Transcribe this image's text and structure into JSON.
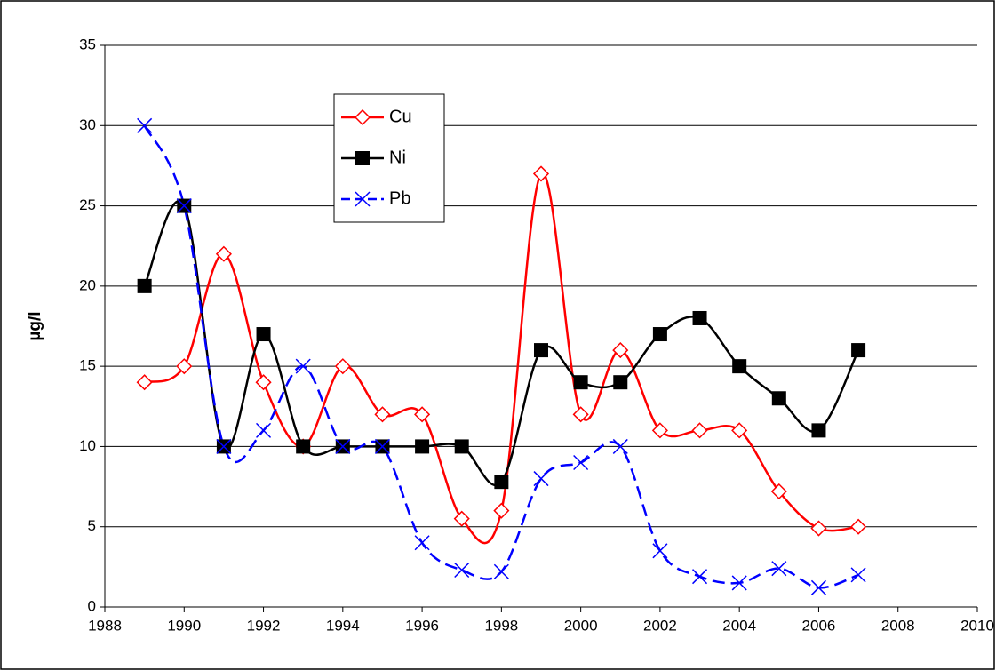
{
  "chart_data": {
    "type": "line",
    "y_label": "µg/l",
    "x": [
      1989,
      1990,
      1991,
      1992,
      1993,
      1994,
      1995,
      1996,
      1997,
      1998,
      1999,
      2000,
      2001,
      2002,
      2003,
      2004,
      2005,
      2006,
      2007
    ],
    "series": [
      {
        "name": "Cu",
        "color": "#ff0000",
        "marker": "diamond",
        "dashed": false,
        "values": [
          14,
          15,
          22,
          14,
          10,
          15,
          12,
          12,
          5.5,
          6,
          27,
          12,
          16,
          11,
          11,
          11,
          7.2,
          4.9,
          5
        ]
      },
      {
        "name": "Ni",
        "color": "#000000",
        "marker": "square",
        "dashed": false,
        "values": [
          20,
          25,
          10,
          17,
          10,
          10,
          10,
          10,
          10,
          7.8,
          16,
          14,
          14,
          17,
          18,
          15,
          13,
          11,
          16
        ]
      },
      {
        "name": "Pb",
        "color": "#0000ff",
        "marker": "x",
        "dashed": true,
        "values": [
          30,
          25,
          10,
          11,
          15,
          10,
          10,
          4,
          2.3,
          2.2,
          8,
          9,
          10,
          3.5,
          1.9,
          1.5,
          2.4,
          1.2,
          2
        ]
      }
    ],
    "xlim": [
      1988,
      2010
    ],
    "xticks": [
      1988,
      1990,
      1992,
      1994,
      1996,
      1998,
      2000,
      2002,
      2004,
      2006,
      2008,
      2010
    ],
    "ylim": [
      0,
      35
    ],
    "yticks": [
      0,
      5,
      10,
      15,
      20,
      25,
      30,
      35
    ],
    "grid": true,
    "smooth": true
  }
}
